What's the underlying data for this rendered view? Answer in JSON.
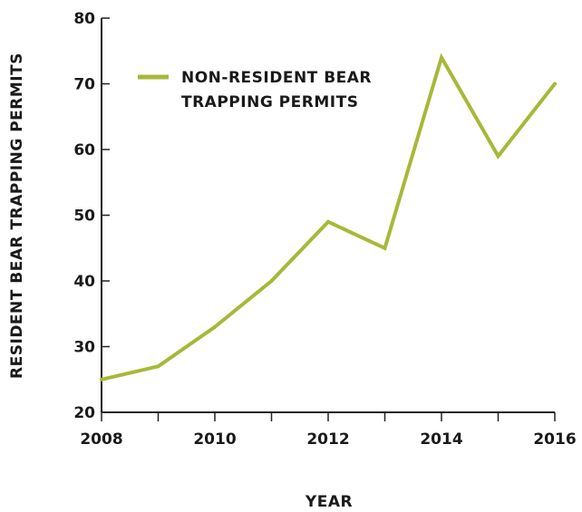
{
  "chart_data": {
    "type": "line",
    "xlabel": "YEAR",
    "ylabel": "RESIDENT BEAR TRAPPING PERMITS",
    "xlim": [
      2008,
      2016
    ],
    "ylim": [
      20,
      80
    ],
    "x_ticks": [
      2008,
      2009,
      2010,
      2011,
      2012,
      2013,
      2014,
      2015,
      2016
    ],
    "x_tick_labels": [
      "2008",
      "",
      "2010",
      "",
      "2012",
      "",
      "2014",
      "",
      "2016"
    ],
    "y_ticks": [
      20,
      30,
      40,
      50,
      60,
      70,
      80
    ],
    "y_tick_labels": [
      "20",
      "30",
      "40",
      "50",
      "60",
      "70",
      "80"
    ],
    "grid": false,
    "legend_position": "top-left",
    "x": [
      2008,
      2009,
      2010,
      2011,
      2012,
      2013,
      2014,
      2015,
      2016
    ],
    "series": [
      {
        "name_lines": [
          "NON-RESIDENT BEAR",
          "TRAPPING PERMITS"
        ],
        "color": "#a8b838",
        "values": [
          25,
          27,
          33,
          40,
          49,
          45,
          74,
          59,
          70
        ]
      }
    ]
  }
}
